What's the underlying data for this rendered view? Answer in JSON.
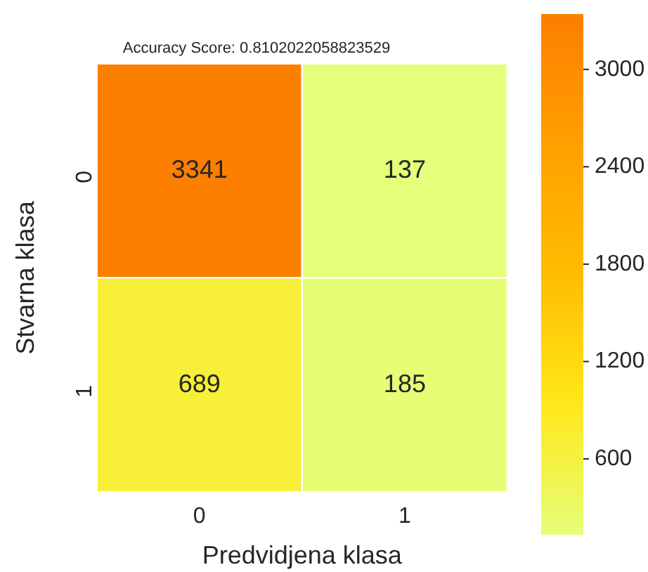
{
  "chart_data": {
    "type": "heatmap",
    "title": "Accuracy Score: 0.8102022058823529",
    "xlabel": "Predvidjena klasa",
    "ylabel": "Stvarna klasa",
    "categories": [
      "0",
      "1"
    ],
    "y_categories": [
      "0",
      "1"
    ],
    "cells": [
      [
        3341,
        137
      ],
      [
        689,
        185
      ]
    ],
    "clim": [
      137,
      3341
    ],
    "cticks": [
      600,
      1200,
      1800,
      2400,
      3000
    ],
    "data_labels": true
  }
}
